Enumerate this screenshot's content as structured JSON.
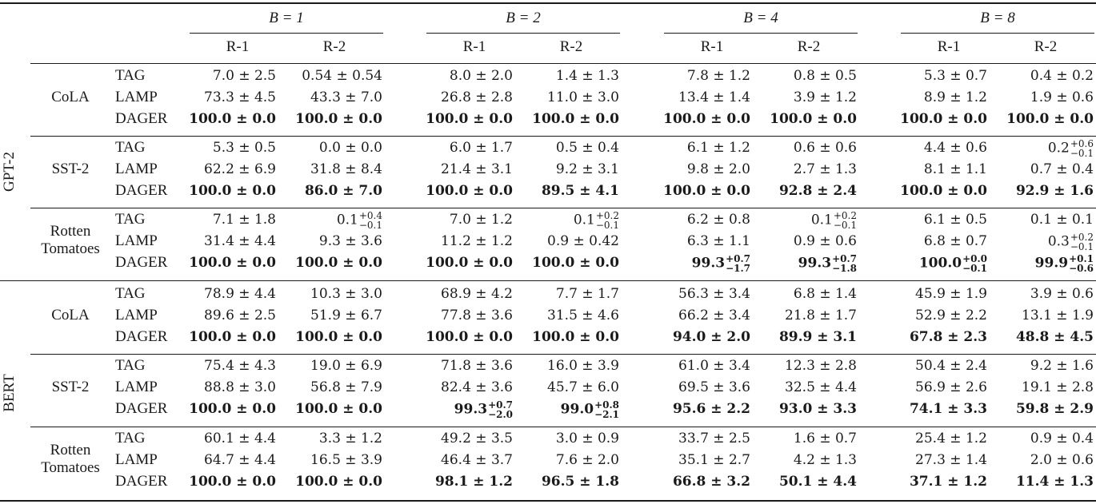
{
  "table": {
    "batch_headers": [
      "B = 1",
      "B = 2",
      "B = 4",
      "B = 8"
    ],
    "metric_headers": [
      "R-1",
      "R-2"
    ],
    "models": [
      {
        "name": "GPT-2",
        "datasets": [
          {
            "name": [
              "CoLA"
            ],
            "rows": [
              {
                "method": "TAG",
                "bold": false,
                "values": [
                  "7.0 ± 2.5",
                  "0.54 ± 0.54",
                  "8.0 ± 2.0",
                  "1.4 ± 1.3",
                  "7.8 ± 1.2",
                  "0.8 ± 0.5",
                  "5.3 ± 0.7",
                  "0.4 ± 0.2"
                ]
              },
              {
                "method": "LAMP",
                "bold": false,
                "values": [
                  "73.3 ± 4.5",
                  "43.3 ± 7.0",
                  "26.8 ± 2.8",
                  "11.0 ± 3.0",
                  "13.4 ± 1.4",
                  "3.9 ± 1.2",
                  "8.9 ± 1.2",
                  "1.9 ± 0.6"
                ]
              },
              {
                "method": "DAGER",
                "bold": true,
                "values": [
                  "100.0 ± 0.0",
                  "100.0 ± 0.0",
                  "100.0 ± 0.0",
                  "100.0 ± 0.0",
                  "100.0 ± 0.0",
                  "100.0 ± 0.0",
                  "100.0 ± 0.0",
                  "100.0 ± 0.0"
                ]
              }
            ]
          },
          {
            "name": [
              "SST-2"
            ],
            "rows": [
              {
                "method": "TAG",
                "bold": false,
                "values": [
                  "5.3 ± 0.5",
                  "0.0 ± 0.0",
                  "6.0 ± 1.7",
                  "0.5 ± 0.4",
                  "6.1 ± 1.2",
                  "0.6 ± 0.6",
                  "4.4 ± 0.6",
                  "0.2 +0.6 −0.1"
                ]
              },
              {
                "method": "LAMP",
                "bold": false,
                "values": [
                  "62.2 ± 6.9",
                  "31.8 ± 8.4",
                  "21.4 ± 3.1",
                  "9.2 ± 3.1",
                  "9.8 ± 2.0",
                  "2.7 ± 1.3",
                  "8.1 ± 1.1",
                  "0.7 ± 0.4"
                ]
              },
              {
                "method": "DAGER",
                "bold": true,
                "values": [
                  "100.0 ± 0.0",
                  "86.0 ± 7.0",
                  "100.0 ± 0.0",
                  "89.5 ± 4.1",
                  "100.0 ± 0.0",
                  "92.8 ± 2.4",
                  "100.0 ± 0.0",
                  "92.9 ± 1.6"
                ]
              }
            ]
          },
          {
            "name": [
              "Rotten",
              "Tomatoes"
            ],
            "rows": [
              {
                "method": "TAG",
                "bold": false,
                "values": [
                  "7.1 ± 1.8",
                  "0.1 +0.4 −0.1",
                  "7.0 ± 1.2",
                  "0.1 +0.2 −0.1",
                  "6.2 ± 0.8",
                  "0.1 +0.2 −0.1",
                  "6.1 ± 0.5",
                  "0.1 ± 0.1"
                ]
              },
              {
                "method": "LAMP",
                "bold": false,
                "values": [
                  "31.4 ± 4.4",
                  "9.3 ± 3.6",
                  "11.2 ± 1.2",
                  "0.9 ± 0.42",
                  "6.3 ± 1.1",
                  "0.9 ± 0.6",
                  "6.8 ± 0.7",
                  "0.3 +0.2 −0.1"
                ]
              },
              {
                "method": "DAGER",
                "bold": true,
                "values": [
                  "100.0 ± 0.0",
                  "100.0 ± 0.0",
                  "100.0 ± 0.0",
                  "100.0 ± 0.0",
                  "99.3 +0.7 −1.7",
                  "99.3 +0.7 −1.8",
                  "100.0 +0.0 −0.1",
                  "99.9 +0.1 −0.6"
                ]
              }
            ]
          }
        ]
      },
      {
        "name": "BERT",
        "datasets": [
          {
            "name": [
              "CoLA"
            ],
            "rows": [
              {
                "method": "TAG",
                "bold": false,
                "values": [
                  "78.9 ± 4.4",
                  "10.3 ± 3.0",
                  "68.9 ± 4.2",
                  "7.7 ± 1.7",
                  "56.3 ± 3.4",
                  "6.8 ± 1.4",
                  "45.9 ± 1.9",
                  "3.9 ± 0.6"
                ]
              },
              {
                "method": "LAMP",
                "bold": false,
                "values": [
                  "89.6 ± 2.5",
                  "51.9 ± 6.7",
                  "77.8 ± 3.6",
                  "31.5 ± 4.6",
                  "66.2 ± 3.4",
                  "21.8 ± 1.7",
                  "52.9 ± 2.2",
                  "13.1 ± 1.9"
                ]
              },
              {
                "method": "DAGER",
                "bold": true,
                "values": [
                  "100.0 ± 0.0",
                  "100.0 ± 0.0",
                  "100.0 ± 0.0",
                  "100.0 ± 0.0",
                  "94.0 ± 2.0",
                  "89.9 ± 3.1",
                  "67.8 ± 2.3",
                  "48.8 ± 4.5"
                ]
              }
            ]
          },
          {
            "name": [
              "SST-2"
            ],
            "rows": [
              {
                "method": "TAG",
                "bold": false,
                "values": [
                  "75.4 ± 4.3",
                  "19.0 ± 6.9",
                  "71.8 ± 3.6",
                  "16.0 ± 3.9",
                  "61.0 ± 3.4",
                  "12.3 ± 2.8",
                  "50.4 ± 2.4",
                  "9.2 ± 1.6"
                ]
              },
              {
                "method": "LAMP",
                "bold": false,
                "values": [
                  "88.8 ± 3.0",
                  "56.8 ± 7.9",
                  "82.4 ± 3.6",
                  "45.7 ± 6.0",
                  "69.5 ± 3.6",
                  "32.5 ± 4.4",
                  "56.9 ± 2.6",
                  "19.1 ± 2.8"
                ]
              },
              {
                "method": "DAGER",
                "bold": true,
                "values": [
                  "100.0 ± 0.0",
                  "100.0 ± 0.0",
                  "99.3 +0.7 −2.0",
                  "99.0 +0.8 −2.1",
                  "95.6 ± 2.2",
                  "93.0 ± 3.3",
                  "74.1 ± 3.3",
                  "59.8 ± 2.9"
                ]
              }
            ]
          },
          {
            "name": [
              "Rotten",
              "Tomatoes"
            ],
            "rows": [
              {
                "method": "TAG",
                "bold": false,
                "values": [
                  "60.1 ± 4.4",
                  "3.3 ± 1.2",
                  "49.2 ± 3.5",
                  "3.0 ± 0.9",
                  "33.7 ± 2.5",
                  "1.6 ± 0.7",
                  "25.4 ± 1.2",
                  "0.9 ± 0.4"
                ]
              },
              {
                "method": "LAMP",
                "bold": false,
                "values": [
                  "64.7 ± 4.4",
                  "16.5 ± 3.9",
                  "46.4 ± 3.7",
                  "7.6 ± 2.0",
                  "35.1 ± 2.7",
                  "4.2 ± 1.3",
                  "27.3 ± 1.4",
                  "2.0 ± 0.6"
                ]
              },
              {
                "method": "DAGER",
                "bold": true,
                "values": [
                  "100.0 ± 0.0",
                  "100.0 ± 0.0",
                  "98.1 ± 1.2",
                  "96.5 ± 1.8",
                  "66.8 ± 3.2",
                  "50.1 ± 4.4",
                  "37.1 ± 1.2",
                  "11.4 ± 1.3"
                ]
              }
            ]
          }
        ]
      }
    ]
  }
}
